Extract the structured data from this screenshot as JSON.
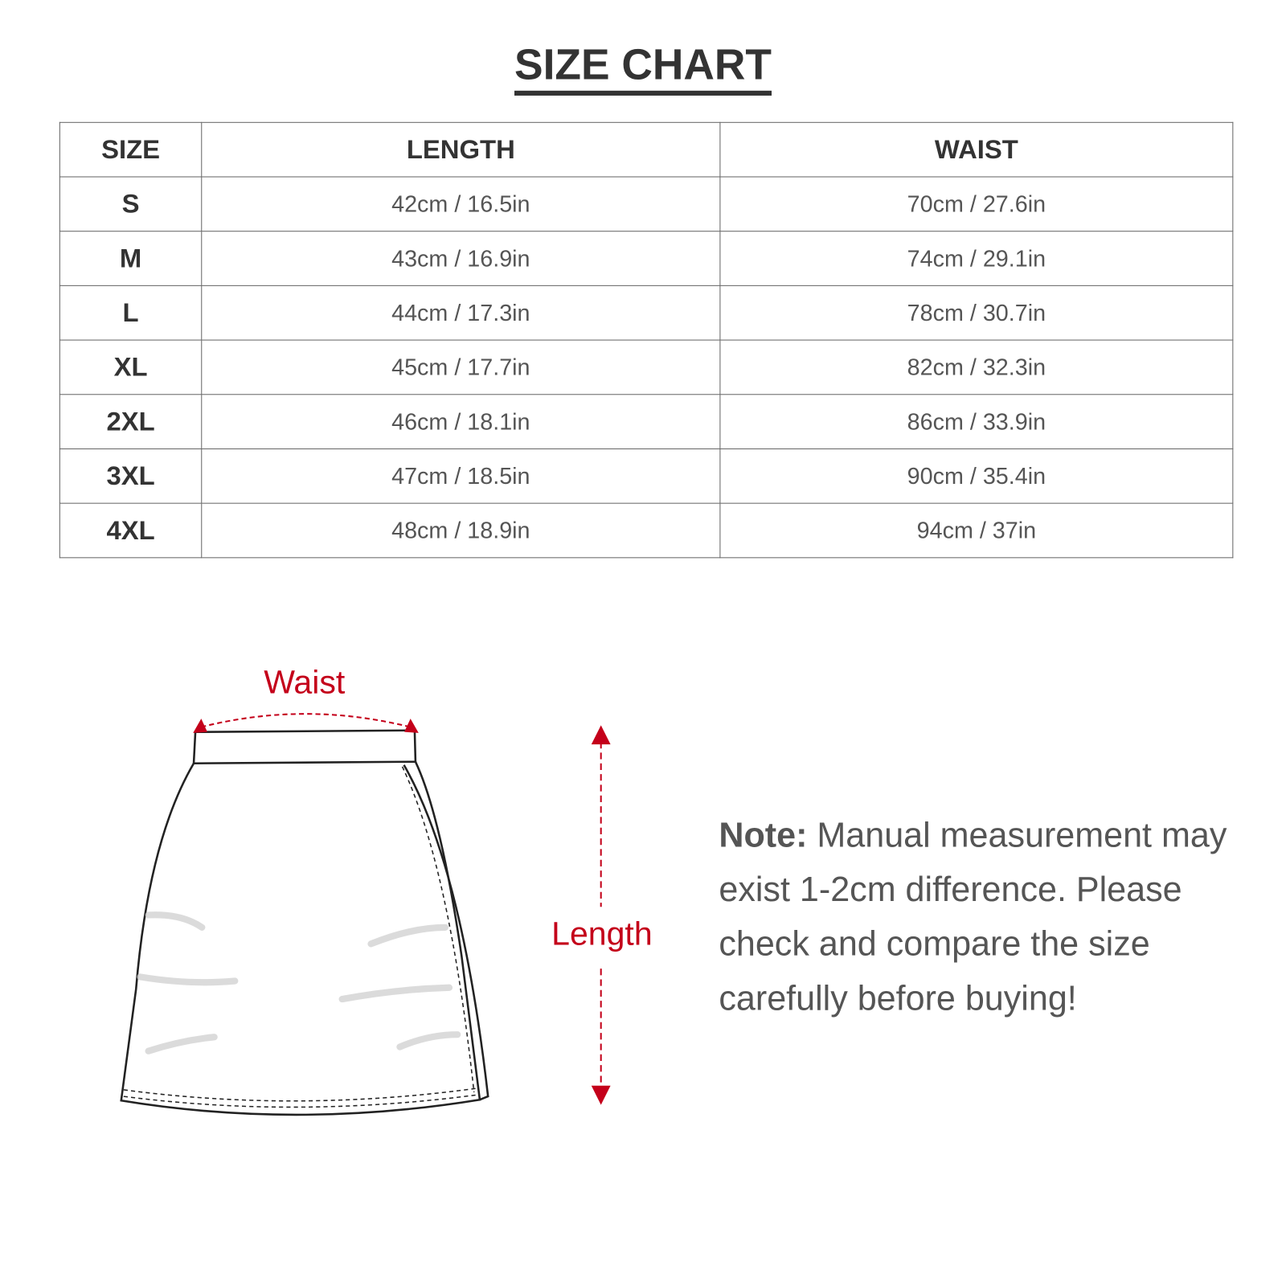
{
  "title": "SIZE CHART",
  "table": {
    "headers": [
      "SIZE",
      "LENGTH",
      "WAIST"
    ],
    "rows": [
      [
        "S",
        "42cm / 16.5in",
        "70cm / 27.6in"
      ],
      [
        "M",
        "43cm / 16.9in",
        "74cm / 29.1in"
      ],
      [
        "L",
        "44cm / 17.3in",
        "78cm / 30.7in"
      ],
      [
        "XL",
        "45cm / 17.7in",
        "82cm / 32.3in"
      ],
      [
        "2XL",
        "46cm / 18.1in",
        "86cm / 33.9in"
      ],
      [
        "3XL",
        "47cm / 18.5in",
        "90cm / 35.4in"
      ],
      [
        "4XL",
        "48cm / 18.9in",
        "94cm / 37in"
      ]
    ]
  },
  "diagram": {
    "waist_label": "Waist",
    "length_label": "Length",
    "accent_color": "#c4001a"
  },
  "note": {
    "label": "Note:",
    "text": " Manual measurement may exist 1-2cm difference. Please check and compare the size carefully before buying!"
  }
}
